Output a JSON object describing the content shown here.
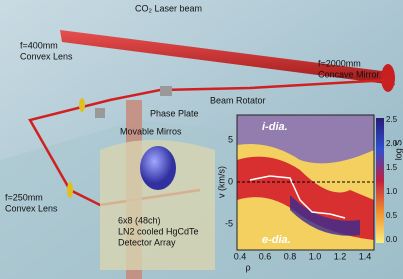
{
  "labels": {
    "laser_beam": "CO₂ Laser beam",
    "concave_mirror": [
      "f=2000mm",
      "Concave Mirror"
    ],
    "convex_lens_top": [
      "f=400mm",
      "Convex Lens"
    ],
    "beam_rotator": "Beam Rotator",
    "phase_plate": "Phase Plate",
    "movable_mirrors": "Movable Mirros",
    "convex_lens_bottom": [
      "f=250mm",
      "Convex Lens"
    ],
    "detector": [
      "6x8 (48ch)",
      "LN2 cooled HgCdTe",
      "Detector Array"
    ]
  },
  "inset": {
    "top_annotation": "i-dia.",
    "bottom_annotation": "e-dia.",
    "y_label": "v (km/s)",
    "y_ticks": [
      "5",
      "0",
      "-5"
    ],
    "x_label": "ρ",
    "x_ticks": [
      "0.4",
      "0.6",
      "0.8",
      "1.0",
      "1.2",
      "1.4"
    ],
    "colorbar_label": "log S",
    "colorbar_ticks": [
      "2.5",
      "2.0",
      "1.5",
      "1.0",
      "0.5",
      "0.0"
    ]
  }
}
